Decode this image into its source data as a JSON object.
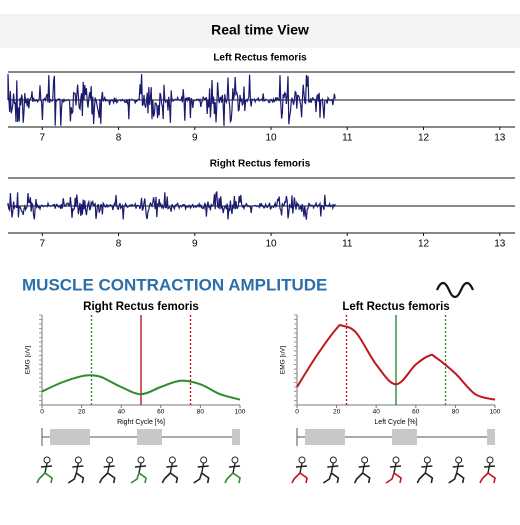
{
  "header": {
    "title": "Real time View"
  },
  "realtime": {
    "xlim": [
      6.55,
      13.2
    ],
    "xticks": [
      7,
      8,
      9,
      10,
      11,
      12,
      13
    ],
    "signal_end": 10.85,
    "panels": [
      {
        "title": "Left Rectus femoris"
      },
      {
        "title": "Right Rectus femoris"
      }
    ]
  },
  "amplitude": {
    "title": "MUSCLE CONTRACTION AMPLITUDE",
    "panels": [
      {
        "title": "Right Rectus femoris",
        "x_label": "Right Cycle [%]",
        "y_label": "EMG [uV]",
        "color": "#2e8b2e",
        "xlim": [
          0,
          100
        ],
        "ylim": [
          0,
          10
        ],
        "xticks": [
          0,
          20,
          40,
          60,
          80,
          100
        ],
        "x": [
          0,
          10,
          20,
          25,
          30,
          40,
          50,
          60,
          70,
          80,
          90,
          100
        ],
        "values": [
          1.5,
          2.5,
          3.2,
          3.3,
          3.1,
          2.0,
          1.2,
          2.0,
          2.7,
          2.3,
          1.2,
          0.6
        ],
        "markers": [
          {
            "value": 25,
            "color": "#2e8b2e",
            "style": "dotted"
          },
          {
            "value": 50,
            "color": "#c0161c",
            "style": "solid"
          },
          {
            "value": 75,
            "color": "#c0161c",
            "style": "dotted"
          }
        ]
      },
      {
        "title": "Left Rectus femoris",
        "x_label": "Left Cycle [%]",
        "y_label": "EMG [uV]",
        "color": "#c0161c",
        "xlim": [
          0,
          100
        ],
        "ylim": [
          0,
          10
        ],
        "xticks": [
          0,
          20,
          40,
          60,
          80,
          100
        ],
        "x": [
          0,
          10,
          20,
          23,
          30,
          40,
          50,
          60,
          67,
          70,
          80,
          90,
          100
        ],
        "values": [
          2.0,
          5.5,
          8.5,
          8.8,
          8.0,
          4.5,
          2.3,
          4.5,
          5.5,
          5.3,
          3.5,
          1.2,
          0.6
        ],
        "markers": [
          {
            "value": 25,
            "color": "#c0161c",
            "style": "dotted"
          },
          {
            "value": 50,
            "color": "#2e8b2e",
            "style": "solid"
          },
          {
            "value": 75,
            "color": "#2e8b2e",
            "style": "dotted"
          }
        ]
      }
    ]
  }
}
